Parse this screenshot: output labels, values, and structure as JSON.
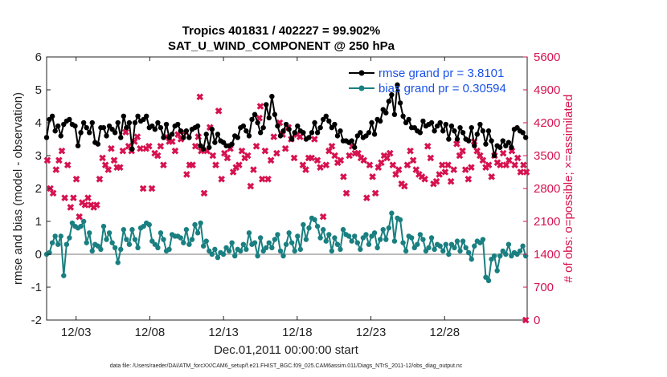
{
  "chart_data": {
    "type": "line",
    "title_line1": "Tropics 401831 / 402227 = 99.902%",
    "title_line2": "SAT_U_WIND_COMPONENT @ 250 hPa",
    "ylabel_left": "rmse and bias (model - observation)",
    "ylabel_right": "# of obs: o=possible; ×=assimilated",
    "xlabel": "Dec.01,2011 00:00:00 start",
    "footnote": "data file: /Users/raeder/DAI/ATM_forcXX/CAM6_setup/f.e21.FHIST_BGC.f09_025.CAM6assim.011/Diags_NTrS_2011-12/obs_diag_output.nc",
    "x_range": [
      1,
      33.6
    ],
    "x_tick_values": [
      3,
      8,
      13,
      18,
      23,
      28
    ],
    "x_tick_labels": [
      "12/03",
      "12/08",
      "12/13",
      "12/18",
      "12/23",
      "12/28"
    ],
    "ylim_left": [
      -2,
      6
    ],
    "y_ticks_left": [
      "-2",
      "-1",
      "0",
      "1",
      "2",
      "3",
      "4",
      "5",
      "6"
    ],
    "ylim_right": [
      0,
      5600
    ],
    "y_ticks_right": [
      "0",
      "700",
      "1400",
      "2100",
      "2800",
      "3500",
      "4200",
      "4900",
      "5600"
    ],
    "colors": {
      "rmse": "#000000",
      "bias": "#1a7f80",
      "obs": "#d6124f",
      "zero_line": "#bbbbbb",
      "legend_text": "#1a52e8"
    },
    "series": [
      {
        "name": "rmse grand pr = 3.8101",
        "legend": "rmse grand pr = 3.8101",
        "values": [
          3.55,
          4.1,
          4.2,
          3.75,
          3.9,
          3.6,
          3.95,
          4.05,
          4.1,
          3.95,
          3.9,
          3.3,
          3.7,
          4.0,
          3.85,
          3.7,
          4.0,
          3.4,
          3.35,
          3.85,
          3.85,
          3.6,
          3.9,
          3.8,
          3.7,
          4.0,
          3.55,
          4.2,
          3.85,
          4.0,
          3.2,
          4.0,
          4.2,
          4.05,
          4.1,
          4.2,
          3.85,
          3.9,
          3.8,
          4.0,
          3.85,
          3.55,
          3.95,
          3.55,
          3.65,
          3.9,
          3.95,
          3.75,
          3.55,
          3.75,
          3.55,
          3.8,
          3.85,
          3.9,
          3.3,
          3.2,
          3.65,
          3.25,
          3.8,
          3.4,
          3.65,
          3.45,
          3.4,
          3.3,
          3.3,
          3.35,
          3.6,
          3.55,
          3.85,
          3.9,
          3.75,
          3.6,
          4.1,
          4.25,
          4.0,
          3.7,
          3.85,
          4.55,
          4.15,
          4.8,
          4.25,
          3.9,
          3.6,
          3.75,
          3.95,
          3.8,
          3.5,
          3.7,
          3.9,
          3.75,
          3.7,
          3.5,
          3.55,
          3.7,
          4.0,
          3.7,
          3.85,
          4.1,
          4.2,
          4.05,
          3.85,
          3.95,
          3.6,
          3.75,
          3.45,
          3.45,
          3.4,
          3.45,
          3.25,
          3.6,
          3.7,
          3.55,
          3.6,
          3.7,
          4.0,
          3.65,
          4.1,
          4.05,
          4.4,
          4.3,
          4.65,
          4.85,
          4.25,
          5.15,
          4.6,
          4.2,
          4.0,
          4.1,
          3.85,
          3.85,
          3.75,
          3.7,
          4.05,
          3.9,
          3.95,
          4.0,
          3.75,
          3.9,
          4.0,
          3.75,
          3.95,
          3.5,
          3.9,
          3.75,
          3.5,
          3.85,
          3.7,
          3.5,
          3.45,
          3.85,
          3.3,
          3.65,
          3.95,
          3.75,
          3.35,
          3.75,
          3.45,
          3.0,
          3.3,
          3.25,
          3.45,
          3.3,
          3.4,
          3.25,
          3.8,
          3.85,
          3.75,
          3.7,
          3.55
        ]
      },
      {
        "name": "bias grand pr = 0.30594",
        "legend": "bias grand pr = 0.30594",
        "values": [
          0.0,
          0.05,
          0.35,
          0.55,
          0.3,
          0.55,
          -0.65,
          0.3,
          0.5,
          0.95,
          0.85,
          0.8,
          0.85,
          1.0,
          0.35,
          0.65,
          0.1,
          0.3,
          0.25,
          0.15,
          0.85,
          0.45,
          0.65,
          0.35,
          0.2,
          -0.25,
          0.15,
          0.75,
          0.45,
          0.3,
          0.75,
          0.45,
          0.2,
          0.8,
          0.85,
          0.95,
          0.9,
          0.4,
          0.3,
          0.2,
          0.65,
          0.45,
          0.1,
          0.15,
          0.6,
          0.55,
          0.55,
          0.5,
          0.35,
          0.75,
          0.3,
          0.45,
          0.9,
          0.65,
          0.95,
          0.25,
          0.4,
          0.1,
          0.0,
          0.15,
          -0.1,
          0.05,
          0.0,
          0.2,
          0.1,
          0.35,
          -0.05,
          0.15,
          0.1,
          0.3,
          0.15,
          0.65,
          0.3,
          0.35,
          -0.05,
          0.5,
          0.1,
          0.2,
          0.35,
          0.2,
          0.45,
          0.6,
          0.1,
          -0.05,
          0.3,
          0.65,
          0.35,
          0.1,
          0.55,
          0.15,
          0.9,
          0.45,
          0.8,
          1.1,
          1.05,
          0.85,
          0.5,
          0.75,
          0.4,
          0.6,
          0.1,
          0.5,
          0.3,
          0.15,
          0.75,
          0.6,
          0.55,
          0.4,
          0.55,
          0.35,
          0.15,
          0.5,
          0.6,
          0.3,
          0.55,
          0.65,
          0.2,
          0.45,
          0.75,
          0.45,
          0.8,
          1.25,
          0.4,
          1.1,
          1.05,
          0.35,
          0.1,
          0.55,
          0.5,
          0.2,
          0.3,
          0.6,
          0.45,
          0.1,
          0.2,
          0.5,
          0.15,
          0.3,
          0.25,
          0.1,
          0.3,
          0.0,
          0.3,
          0.2,
          0.4,
          0.1,
          0.4,
          0.2,
          0.05,
          -0.15,
          0.25,
          0.4,
          0.35,
          0.45,
          -0.7,
          -0.8,
          -0.15,
          -0.05,
          -0.5,
          -0.05,
          0.1,
          0.0,
          0.3,
          -0.05,
          0.05,
          0.0,
          0.1,
          0.25,
          -0.05
        ]
      },
      {
        "name": "obs assimilated",
        "axis": "right",
        "values": [
          3400,
          2800,
          2700,
          3200,
          3400,
          3600,
          2600,
          3300,
          2400,
          2600,
          3000,
          2200,
          2500,
          2450,
          2600,
          2450,
          2400,
          2450,
          3000,
          3450,
          3300,
          3200,
          3650,
          3400,
          3250,
          3250,
          3600,
          4000,
          3700,
          3600,
          3800,
          3900,
          3650,
          2800,
          3650,
          3700,
          2800,
          3550,
          3500,
          3700,
          3300,
          3900,
          3800,
          3800,
          3600,
          3950,
          3850,
          4000,
          3100,
          3300,
          3300,
          3700,
          3900,
          3600,
          2700,
          3600,
          4100,
          3500,
          3300,
          4450,
          3000,
          3550,
          3450,
          3650,
          3150,
          3250,
          3300,
          3600,
          3450,
          3500,
          2850,
          3200,
          3700,
          4300,
          3000,
          3600,
          3000,
          3400,
          3900,
          3550,
          4200,
          3950,
          3650,
          4100,
          3850,
          3450,
          3950,
          3900,
          3300,
          3200,
          3450,
          3450,
          3850,
          3400,
          3250,
          2200,
          3300,
          3600,
          3700,
          3500,
          3350,
          3400,
          3050,
          2700,
          3500,
          3700,
          3550,
          3550,
          3450,
          3400,
          2600,
          3300,
          3050,
          2700,
          3250,
          3350,
          3500,
          3450,
          3550,
          3300,
          3100,
          3200,
          2900,
          2850,
          3300,
          3600,
          3400,
          3200,
          3100,
          3050,
          3000,
          3700,
          3450,
          2900,
          2950,
          3100,
          3300,
          3150,
          3300,
          2950,
          3200,
          3750,
          3500,
          3600,
          3200,
          3000,
          3250,
          3800,
          3600,
          3500,
          3400,
          3250,
          3300,
          3050,
          3500,
          3350,
          3300,
          3550,
          3300,
          3400,
          3600,
          3300,
          3450,
          3150,
          3300,
          3150
        ]
      }
    ],
    "extra_markers": [
      {
        "x": 11.4,
        "value": 4750
      },
      {
        "x": 15.5,
        "value": 4550
      },
      {
        "x": 33.5,
        "value": 0
      }
    ]
  }
}
